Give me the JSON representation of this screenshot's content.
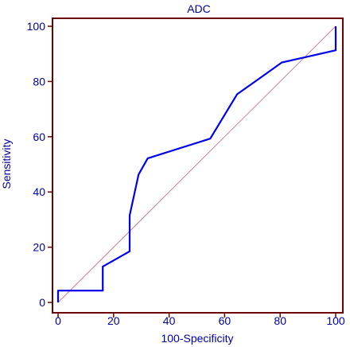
{
  "chart_data": {
    "type": "line",
    "title": "ADC",
    "xlabel": "100-Specificity",
    "ylabel": "Sensitivity",
    "xlim": [
      0,
      100
    ],
    "ylim": [
      0,
      100
    ],
    "x_ticks": [
      "0",
      "20",
      "40",
      "60",
      "80",
      "100"
    ],
    "y_ticks": [
      "0",
      "20",
      "40",
      "60",
      "80",
      "100"
    ],
    "grid": false,
    "legend": "none",
    "colors": {
      "curve": "#0000ee",
      "reference": "#c87890",
      "frame": "#6b0000",
      "text": "#0000a0"
    },
    "series": [
      {
        "x": [
          0,
          0,
          16.1,
          16.1,
          25.8,
          25.8,
          29.0,
          32.3,
          54.8,
          64.5,
          71.0,
          80.6,
          100.0,
          100.0
        ],
        "y": [
          0,
          4.3,
          4.3,
          13.0,
          18.5,
          31.5,
          46.3,
          52.2,
          59.3,
          75.4,
          80.0,
          86.9,
          91.3,
          100.0
        ]
      },
      {
        "x": [
          0,
          100
        ],
        "y": [
          0,
          100
        ]
      }
    ]
  }
}
